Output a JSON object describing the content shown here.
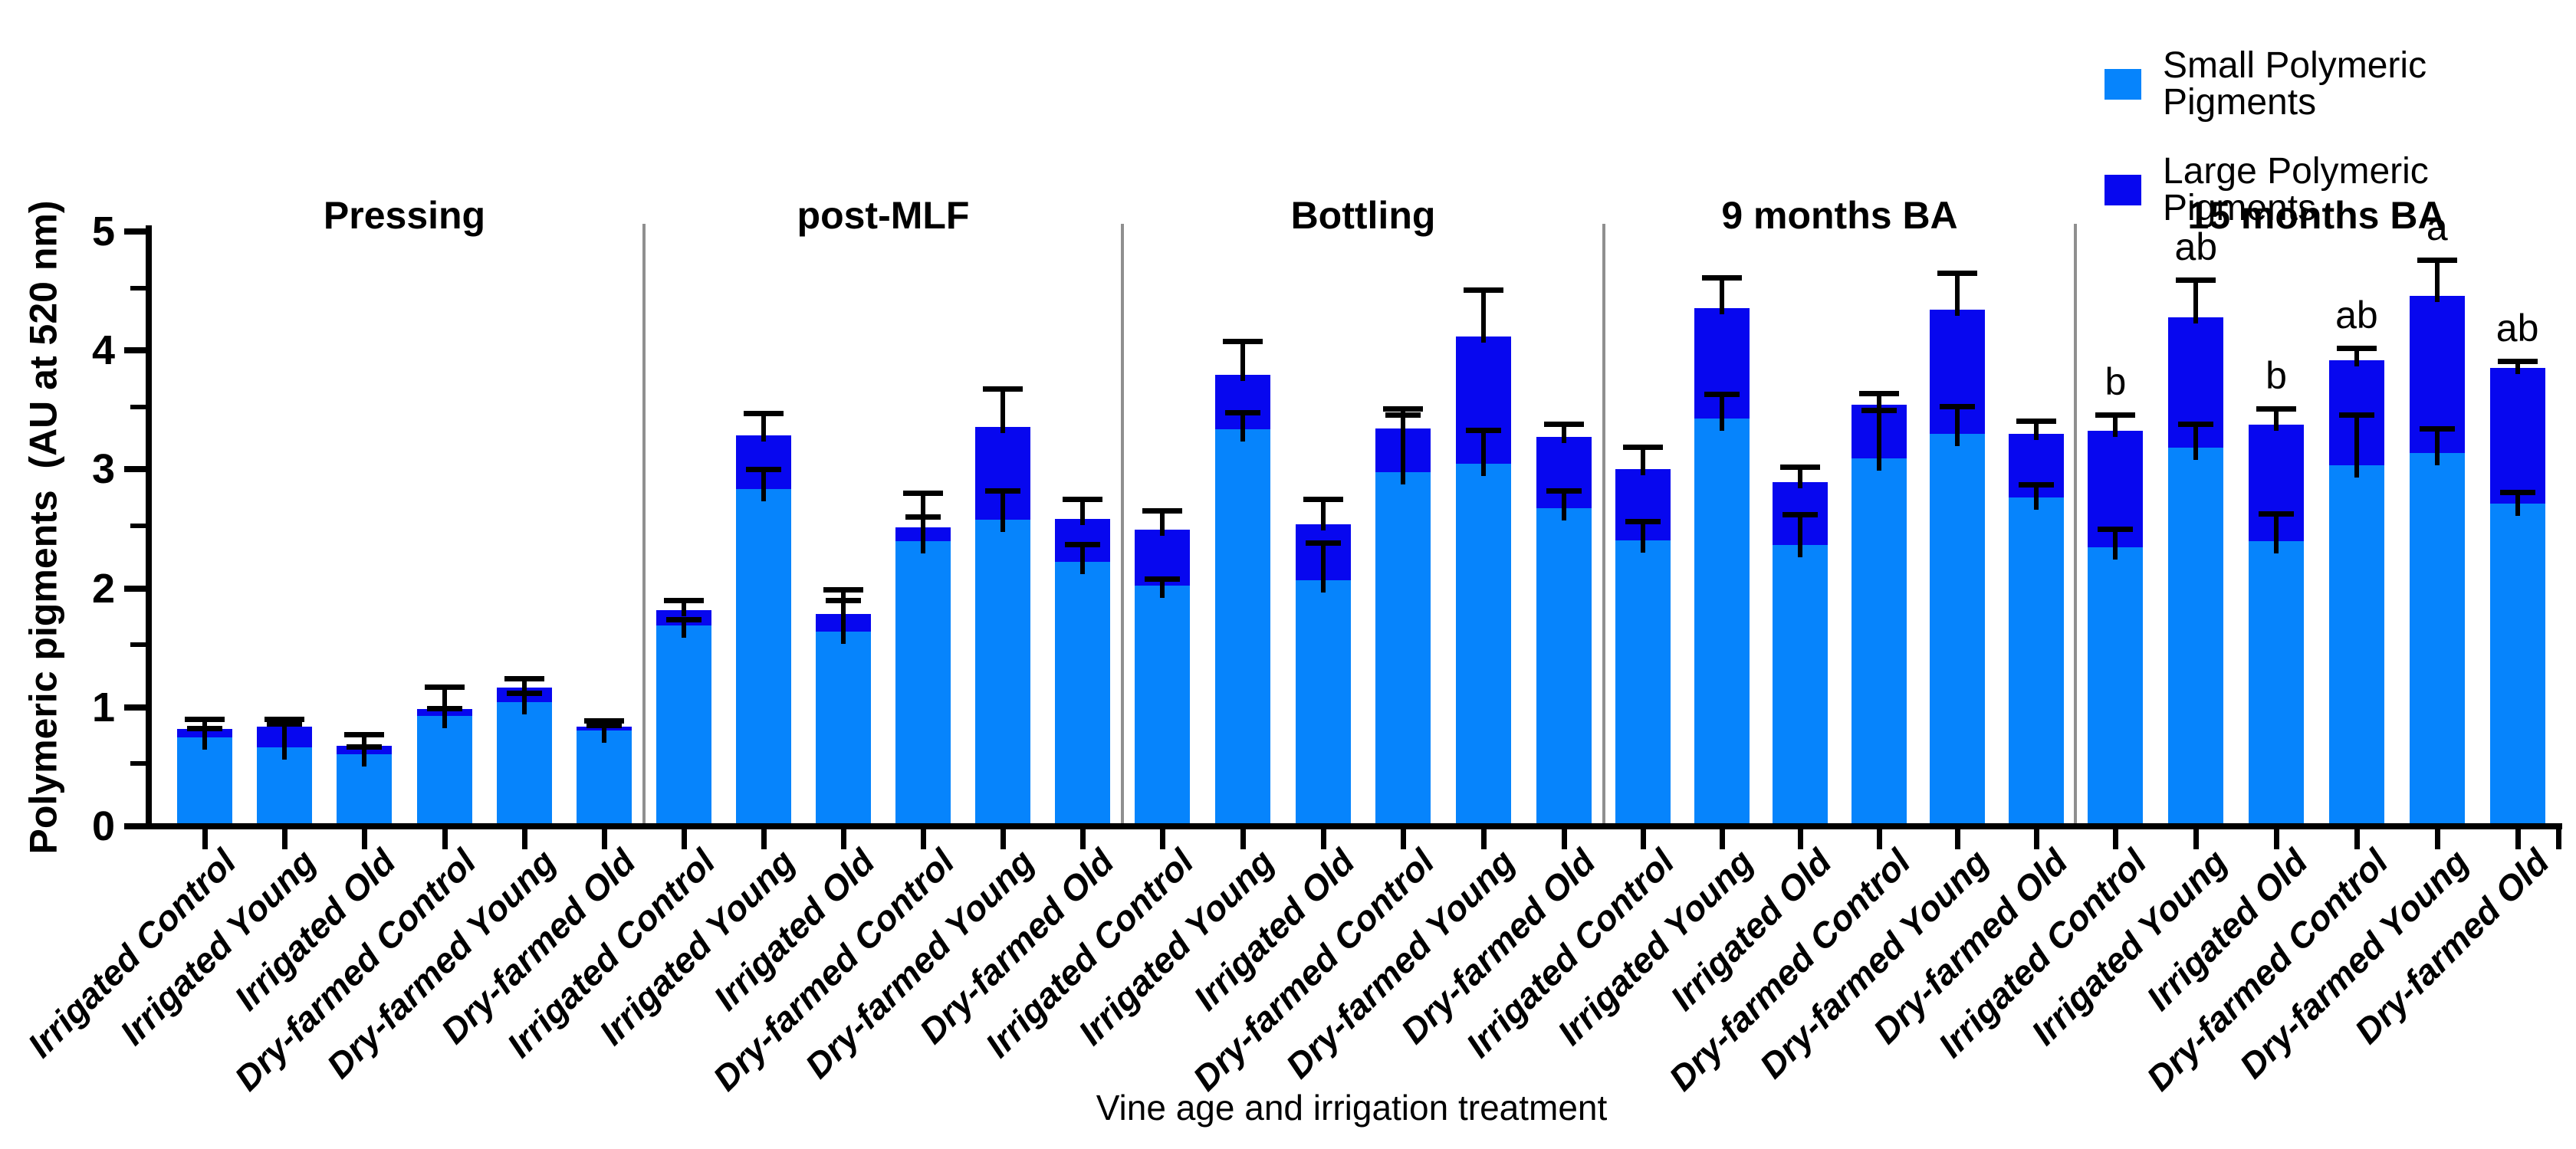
{
  "figure": {
    "x_axis_title": "Vine age and irrigation treatment",
    "y_axis_title": "Polymeric pigments  (AU at 520 nm)"
  },
  "legend": {
    "items": [
      {
        "label": "Small Polymeric Pigments",
        "series_key": "small"
      },
      {
        "label": "Large Polymeric Pigments",
        "series_key": "large"
      }
    ]
  },
  "colors": {
    "small_series": "#0684FC",
    "large_series": "#0707EF",
    "axis": "#000000",
    "separator": "#8f8f8f",
    "background": "#ffffff"
  },
  "chart_data": {
    "type": "bar",
    "stacked": true,
    "grid": false,
    "legend_position": "top-right",
    "xlabel": "Vine age and irrigation treatment",
    "ylabel": "Polymeric pigments  (AU at 520 nm)",
    "ylim": [
      0,
      5
    ],
    "yticks": [
      0,
      1,
      2,
      3,
      4,
      5
    ],
    "minor_yticks": [
      0.5,
      1.5,
      2.5,
      3.5,
      4.5
    ],
    "series_names": [
      "Small Polymeric Pigments",
      "Large Polymeric Pigments"
    ],
    "categories": [
      "Irrigated Control",
      "Irrigated Young",
      "Irrigated Old",
      "Dry-farmed Control",
      "Dry-farmed Young",
      "Dry-farmed Old"
    ],
    "groups": [
      {
        "label": "Pressing",
        "bars": [
          {
            "treatment": "Irrigated Control",
            "small": 0.72,
            "large": 0.07,
            "small_err": 0.05,
            "total_err": 0.06,
            "letter": ""
          },
          {
            "treatment": "Irrigated Young",
            "small": 0.64,
            "large": 0.17,
            "small_err": 0.17,
            "total_err": 0.04,
            "letter": ""
          },
          {
            "treatment": "Irrigated Old",
            "small": 0.58,
            "large": 0.07,
            "small_err": 0.04,
            "total_err": 0.07,
            "letter": ""
          },
          {
            "treatment": "Dry-farmed Control",
            "small": 0.9,
            "large": 0.06,
            "small_err": 0.04,
            "total_err": 0.16,
            "letter": ""
          },
          {
            "treatment": "Dry-farmed Young",
            "small": 1.02,
            "large": 0.12,
            "small_err": 0.05,
            "total_err": 0.05,
            "letter": ""
          },
          {
            "treatment": "Dry-farmed Old",
            "small": 0.78,
            "large": 0.03,
            "small_err": 0.02,
            "total_err": 0.03,
            "letter": ""
          }
        ]
      },
      {
        "label": "post-MLF",
        "bars": [
          {
            "treatment": "Irrigated Control",
            "small": 1.66,
            "large": 0.13,
            "small_err": 0.03,
            "total_err": 0.06,
            "letter": ""
          },
          {
            "treatment": "Irrigated Young",
            "small": 2.81,
            "large": 0.45,
            "small_err": 0.14,
            "total_err": 0.16,
            "letter": ""
          },
          {
            "treatment": "Irrigated Old",
            "small": 1.61,
            "large": 0.15,
            "small_err": 0.24,
            "total_err": 0.18,
            "letter": ""
          },
          {
            "treatment": "Dry-farmed Control",
            "small": 2.37,
            "large": 0.12,
            "small_err": 0.18,
            "total_err": 0.26,
            "letter": ""
          },
          {
            "treatment": "Dry-farmed Young",
            "small": 2.55,
            "large": 0.78,
            "small_err": 0.22,
            "total_err": 0.3,
            "letter": ""
          },
          {
            "treatment": "Dry-farmed Old",
            "small": 2.2,
            "large": 0.36,
            "small_err": 0.12,
            "total_err": 0.14,
            "letter": ""
          }
        ]
      },
      {
        "label": "Bottling",
        "bars": [
          {
            "treatment": "Irrigated Control",
            "small": 2.0,
            "large": 0.47,
            "small_err": 0.03,
            "total_err": 0.13,
            "letter": ""
          },
          {
            "treatment": "Irrigated Young",
            "small": 3.31,
            "large": 0.46,
            "small_err": 0.12,
            "total_err": 0.26,
            "letter": ""
          },
          {
            "treatment": "Irrigated Old",
            "small": 2.04,
            "large": 0.47,
            "small_err": 0.29,
            "total_err": 0.19,
            "letter": ""
          },
          {
            "treatment": "Dry-farmed Control",
            "small": 2.95,
            "large": 0.37,
            "small_err": 0.46,
            "total_err": 0.14,
            "letter": ""
          },
          {
            "treatment": "Dry-farmed Young",
            "small": 3.02,
            "large": 1.07,
            "small_err": 0.26,
            "total_err": 0.37,
            "letter": ""
          },
          {
            "treatment": "Dry-farmed Old",
            "small": 2.65,
            "large": 0.6,
            "small_err": 0.12,
            "total_err": 0.08,
            "letter": ""
          }
        ]
      },
      {
        "label": "9 months BA",
        "bars": [
          {
            "treatment": "Irrigated Control",
            "small": 2.38,
            "large": 0.6,
            "small_err": 0.13,
            "total_err": 0.16,
            "letter": ""
          },
          {
            "treatment": "Irrigated Young",
            "small": 3.4,
            "large": 0.93,
            "small_err": 0.18,
            "total_err": 0.23,
            "letter": ""
          },
          {
            "treatment": "Irrigated Old",
            "small": 2.34,
            "large": 0.53,
            "small_err": 0.23,
            "total_err": 0.1,
            "letter": ""
          },
          {
            "treatment": "Dry-farmed Control",
            "small": 3.07,
            "large": 0.45,
            "small_err": 0.38,
            "total_err": 0.07,
            "letter": ""
          },
          {
            "treatment": "Dry-farmed Young",
            "small": 3.27,
            "large": 1.05,
            "small_err": 0.21,
            "total_err": 0.28,
            "letter": ""
          },
          {
            "treatment": "Dry-farmed Old",
            "small": 2.74,
            "large": 0.53,
            "small_err": 0.08,
            "total_err": 0.09,
            "letter": ""
          }
        ]
      },
      {
        "label": "15 months BA",
        "bars": [
          {
            "treatment": "Irrigated Control",
            "small": 2.32,
            "large": 0.98,
            "small_err": 0.13,
            "total_err": 0.11,
            "letter": "b"
          },
          {
            "treatment": "Irrigated Young",
            "small": 3.16,
            "large": 1.09,
            "small_err": 0.17,
            "total_err": 0.29,
            "letter": "ab"
          },
          {
            "treatment": "Irrigated Old",
            "small": 2.37,
            "large": 0.98,
            "small_err": 0.21,
            "total_err": 0.11,
            "letter": "b"
          },
          {
            "treatment": "Dry-farmed Control",
            "small": 3.01,
            "large": 0.88,
            "small_err": 0.4,
            "total_err": 0.08,
            "letter": "ab"
          },
          {
            "treatment": "Dry-farmed Young",
            "small": 3.11,
            "large": 1.32,
            "small_err": 0.18,
            "total_err": 0.28,
            "letter": "a"
          },
          {
            "treatment": "Dry-farmed Old",
            "small": 2.69,
            "large": 1.14,
            "small_err": 0.07,
            "total_err": 0.03,
            "letter": "ab"
          }
        ]
      }
    ]
  }
}
